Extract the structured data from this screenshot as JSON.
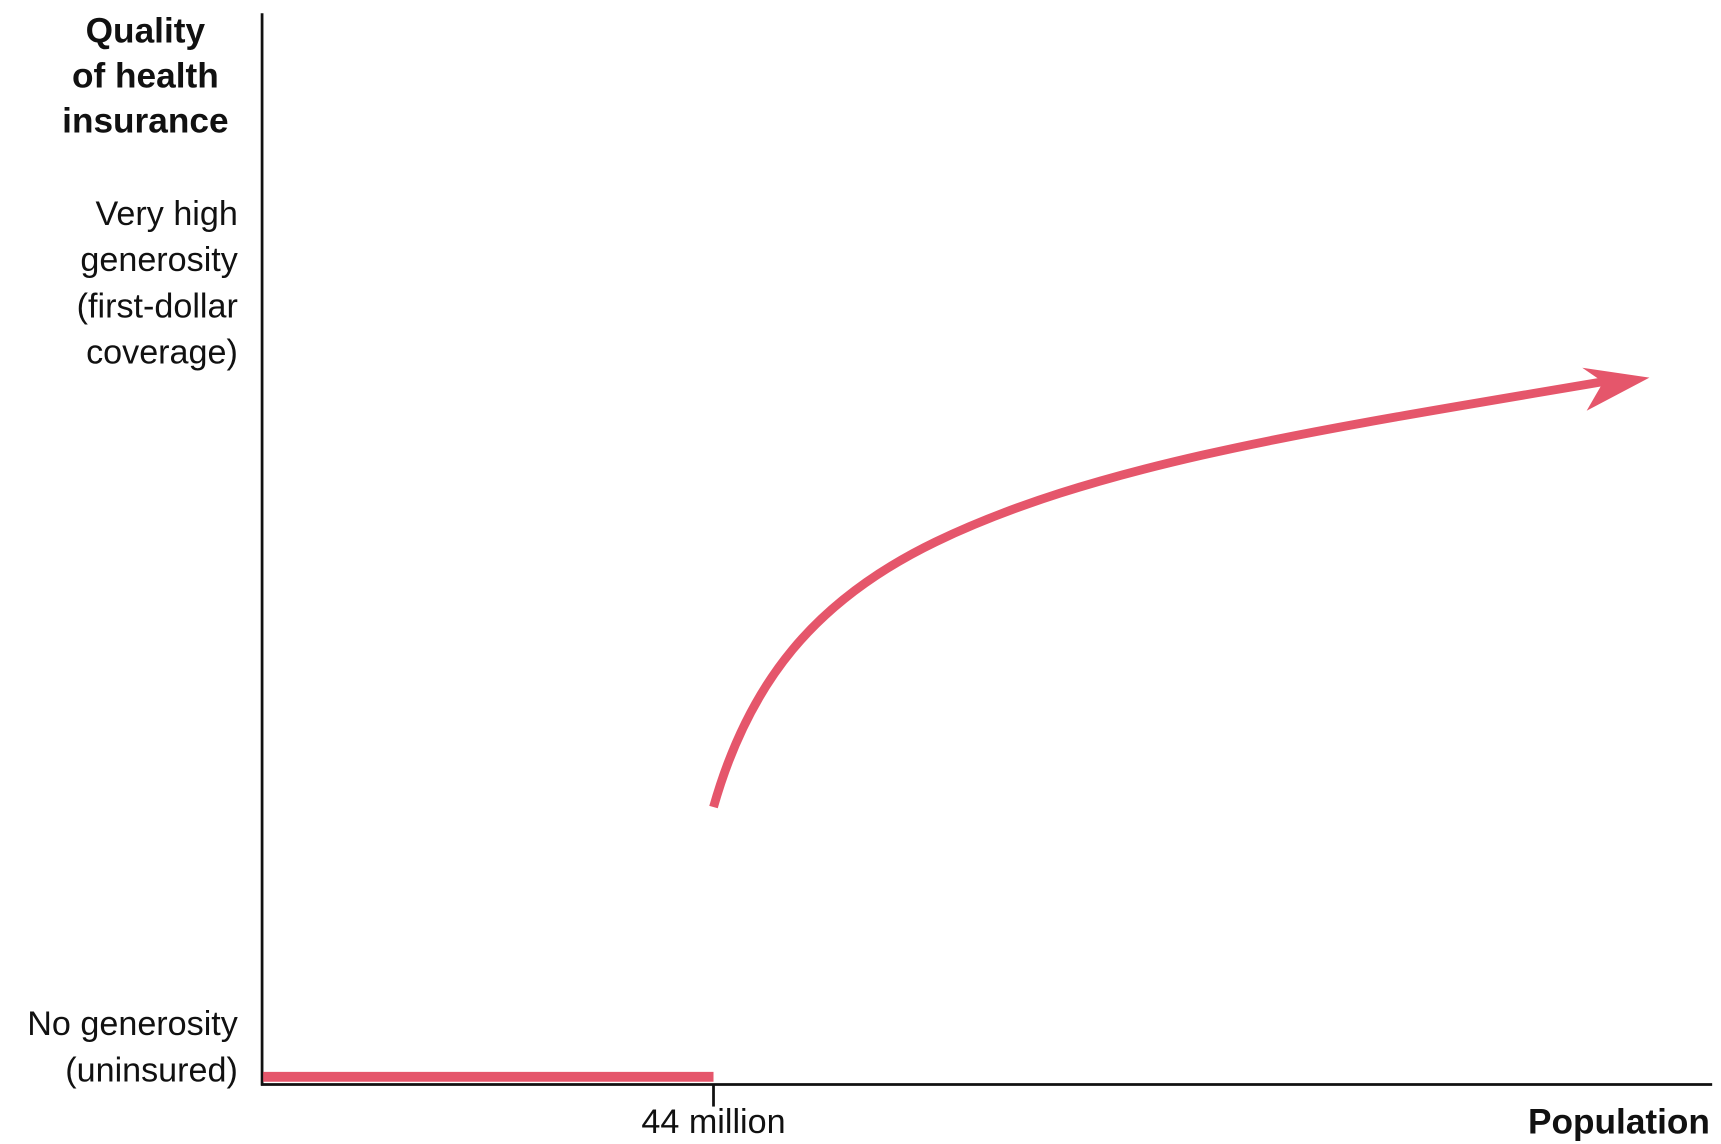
{
  "y_axis_title": [
    "Quality",
    "of health",
    "insurance"
  ],
  "y_labels": {
    "top": [
      "Very high",
      "generosity",
      "(first-dollar",
      "coverage)"
    ],
    "bottom": [
      "No generosity",
      "(uninsured)"
    ]
  },
  "x_tick_label": "44 million",
  "x_axis_title": "Population"
}
